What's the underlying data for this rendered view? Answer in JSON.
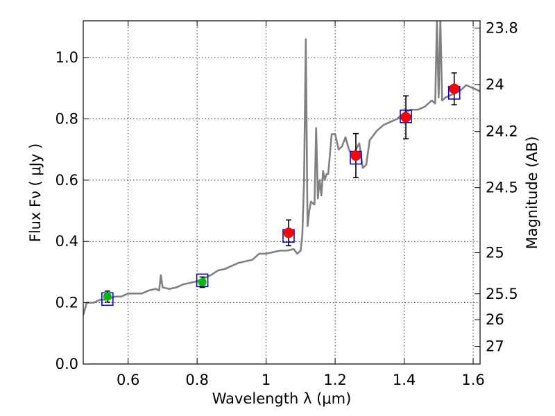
{
  "chart_data": {
    "type": "scatter",
    "xlabel": "Wavelength  λ (μm)",
    "ylabel": "Flux  Fν  ( μJy )",
    "y2label": "Magnitude (AB)",
    "xlim": [
      0.47,
      1.62
    ],
    "ylim": [
      0.0,
      1.12
    ],
    "grid": true,
    "x_ticks": [
      {
        "value": 0.6,
        "label": "0.6"
      },
      {
        "value": 0.8,
        "label": "0.8"
      },
      {
        "value": 1.0,
        "label": "1"
      },
      {
        "value": 1.2,
        "label": "1.2"
      },
      {
        "value": 1.4,
        "label": "1.4"
      },
      {
        "value": 1.6,
        "label": "1.6"
      }
    ],
    "y_ticks": [
      {
        "value": 0.0,
        "label": "0.0"
      },
      {
        "value": 0.2,
        "label": "0.2"
      },
      {
        "value": 0.4,
        "label": "0.4"
      },
      {
        "value": 0.6,
        "label": "0.6"
      },
      {
        "value": 0.8,
        "label": "0.8"
      },
      {
        "value": 1.0,
        "label": "1.0"
      }
    ],
    "mag_ticks": [
      {
        "mag": 23.8,
        "label": "23.8"
      },
      {
        "mag": 24.0,
        "label": "24"
      },
      {
        "mag": 24.2,
        "label": "24.2"
      },
      {
        "mag": 24.5,
        "label": "24.5"
      },
      {
        "mag": 25.0,
        "label": "25"
      },
      {
        "mag": 25.5,
        "label": "25.5"
      },
      {
        "mag": 26.0,
        "label": "26"
      },
      {
        "mag": 27.0,
        "label": "27"
      }
    ],
    "sed_model": {
      "color": "#808080",
      "x": [
        0.47,
        0.48,
        0.49,
        0.5,
        0.52,
        0.54,
        0.56,
        0.58,
        0.6,
        0.62,
        0.64,
        0.66,
        0.68,
        0.69,
        0.695,
        0.7,
        0.72,
        0.74,
        0.76,
        0.78,
        0.8,
        0.82,
        0.84,
        0.86,
        0.88,
        0.9,
        0.92,
        0.94,
        0.96,
        0.97,
        0.98,
        1.0,
        1.02,
        1.04,
        1.06,
        1.08,
        1.09,
        1.1,
        1.105,
        1.11,
        1.115,
        1.12,
        1.125,
        1.13,
        1.14,
        1.145,
        1.15,
        1.155,
        1.16,
        1.165,
        1.17,
        1.175,
        1.18,
        1.19,
        1.2,
        1.21,
        1.22,
        1.23,
        1.24,
        1.25,
        1.26,
        1.27,
        1.28,
        1.29,
        1.3,
        1.32,
        1.34,
        1.36,
        1.38,
        1.4,
        1.42,
        1.44,
        1.46,
        1.48,
        1.49,
        1.495,
        1.5,
        1.505,
        1.51,
        1.52,
        1.54,
        1.56,
        1.58,
        1.6,
        1.62
      ],
      "y": [
        0.16,
        0.2,
        0.2,
        0.2,
        0.21,
        0.21,
        0.22,
        0.22,
        0.23,
        0.23,
        0.23,
        0.24,
        0.245,
        0.24,
        0.29,
        0.25,
        0.245,
        0.25,
        0.26,
        0.265,
        0.27,
        0.28,
        0.29,
        0.305,
        0.31,
        0.32,
        0.33,
        0.335,
        0.34,
        0.35,
        0.36,
        0.36,
        0.365,
        0.37,
        0.37,
        0.375,
        0.36,
        0.37,
        0.42,
        0.6,
        1.06,
        0.45,
        0.5,
        0.53,
        0.52,
        0.77,
        0.54,
        0.6,
        0.55,
        0.63,
        0.6,
        0.62,
        0.62,
        0.75,
        0.75,
        0.7,
        0.71,
        0.74,
        0.7,
        0.68,
        0.7,
        0.72,
        0.64,
        0.65,
        0.73,
        0.76,
        0.78,
        0.79,
        0.8,
        0.82,
        0.83,
        0.83,
        0.84,
        0.86,
        0.85,
        1.12,
        0.87,
        1.12,
        0.86,
        0.87,
        0.88,
        0.89,
        0.91,
        0.9,
        0.89
      ]
    },
    "series": [
      {
        "name": "observed-green",
        "color": "#00bb00",
        "points": [
          {
            "x": 0.54,
            "y": 0.22,
            "err": 0.018
          },
          {
            "x": 0.815,
            "y": 0.267,
            "err": 0.017
          }
        ]
      },
      {
        "name": "observed-red",
        "color": "#ff0000",
        "points": [
          {
            "x": 1.065,
            "y": 0.428,
            "err": 0.042
          },
          {
            "x": 1.26,
            "y": 0.68,
            "err": 0.072
          },
          {
            "x": 1.405,
            "y": 0.805,
            "err": 0.07
          },
          {
            "x": 1.545,
            "y": 0.898,
            "err": 0.052
          }
        ]
      },
      {
        "name": "model-photometry",
        "color": "#0000dd",
        "points": [
          {
            "x": 0.54,
            "y": 0.212
          },
          {
            "x": 0.815,
            "y": 0.273
          },
          {
            "x": 1.065,
            "y": 0.418
          },
          {
            "x": 1.26,
            "y": 0.673
          },
          {
            "x": 1.405,
            "y": 0.808
          },
          {
            "x": 1.545,
            "y": 0.885
          }
        ]
      }
    ]
  }
}
